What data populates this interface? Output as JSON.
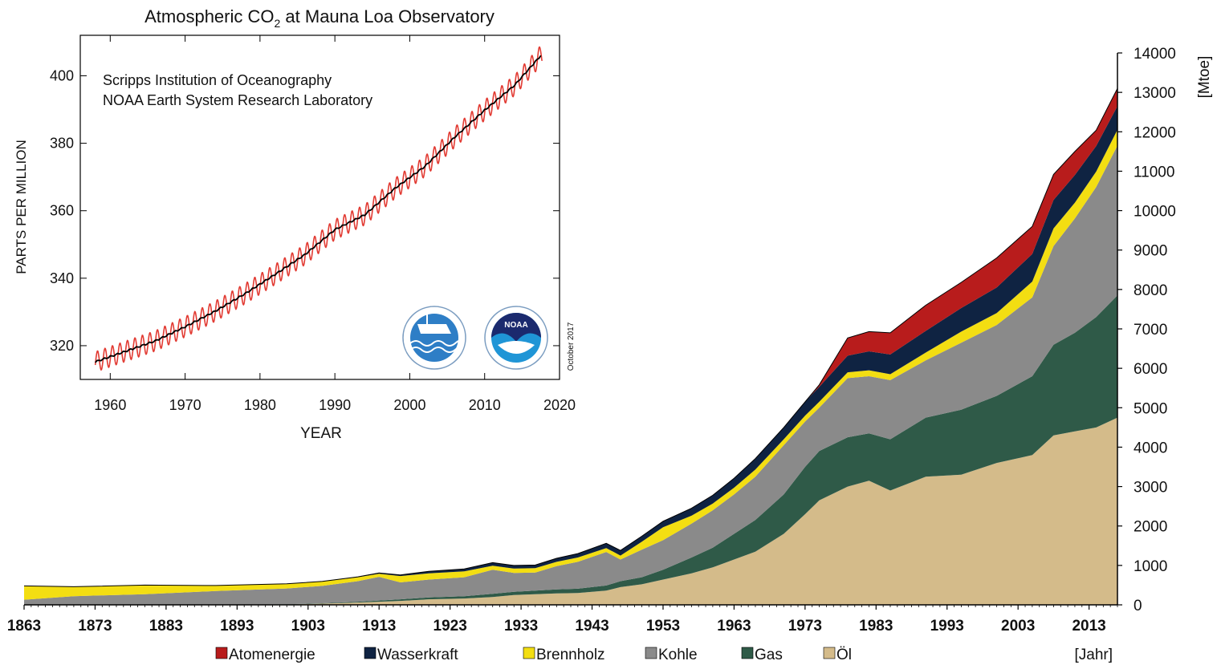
{
  "chart_data": [
    {
      "type": "area",
      "stacked": true,
      "xlabel": "[Jahr]",
      "ylabel": "[Mtoe]",
      "xlim": [
        1863,
        2017
      ],
      "ylim": [
        0,
        14000
      ],
      "x_ticks": [
        1863,
        1873,
        1883,
        1893,
        1903,
        1913,
        1923,
        1933,
        1943,
        1953,
        1963,
        1973,
        1983,
        1993,
        2003,
        2013
      ],
      "y_ticks": [
        0,
        1000,
        2000,
        3000,
        4000,
        5000,
        6000,
        7000,
        8000,
        9000,
        10000,
        11000,
        12000,
        13000,
        14000
      ],
      "y_axis_side": "right",
      "legend_position": "bottom",
      "x": [
        1863,
        1870,
        1880,
        1890,
        1900,
        1905,
        1910,
        1913,
        1916,
        1920,
        1925,
        1929,
        1932,
        1935,
        1938,
        1941,
        1945,
        1947,
        1950,
        1953,
        1957,
        1960,
        1963,
        1966,
        1970,
        1973,
        1975,
        1979,
        1982,
        1985,
        1990,
        1995,
        2000,
        2005,
        2008,
        2011,
        2014,
        2017
      ],
      "series": [
        {
          "name": "Öl",
          "color": "#d4bb8a",
          "values": [
            0,
            0,
            0,
            0,
            10,
            30,
            60,
            80,
            100,
            140,
            160,
            200,
            250,
            270,
            290,
            300,
            360,
            450,
            520,
            640,
            800,
            950,
            1150,
            1350,
            1800,
            2300,
            2650,
            3000,
            3150,
            2900,
            3250,
            3300,
            3600,
            3800,
            4300,
            4400,
            4500,
            4750
          ]
        },
        {
          "name": "Gas",
          "color": "#2f5a48",
          "values": [
            0,
            0,
            0,
            0,
            5,
            10,
            20,
            30,
            40,
            50,
            60,
            80,
            80,
            90,
            100,
            110,
            130,
            150,
            180,
            250,
            400,
            500,
            650,
            800,
            1000,
            1200,
            1250,
            1250,
            1200,
            1300,
            1500,
            1650,
            1700,
            2000,
            2300,
            2500,
            2800,
            3100
          ]
        },
        {
          "name": "Kohle",
          "color": "#8a8a8a",
          "values": [
            130,
            220,
            270,
            350,
            400,
            440,
            520,
            600,
            430,
            450,
            480,
            610,
            480,
            460,
            590,
            680,
            850,
            550,
            700,
            750,
            860,
            950,
            1000,
            1100,
            1250,
            1150,
            1100,
            1500,
            1450,
            1500,
            1450,
            1700,
            1800,
            2000,
            2500,
            2900,
            3300,
            3800
          ]
        },
        {
          "name": "Brennholz",
          "color": "#f3de12",
          "values": [
            350,
            240,
            230,
            140,
            120,
            110,
            100,
            80,
            160,
            160,
            150,
            100,
            110,
            110,
            110,
            110,
            100,
            100,
            200,
            330,
            200,
            170,
            170,
            180,
            150,
            150,
            150,
            150,
            150,
            150,
            200,
            280,
            300,
            400,
            450,
            400,
            390,
            400
          ]
        },
        {
          "name": "Wasserkraft",
          "color": "#0f2342",
          "values": [
            0,
            0,
            0,
            0,
            0,
            5,
            10,
            20,
            30,
            50,
            60,
            80,
            80,
            80,
            90,
            100,
            120,
            130,
            140,
            150,
            190,
            210,
            240,
            280,
            300,
            350,
            380,
            420,
            480,
            500,
            550,
            600,
            650,
            700,
            720,
            700,
            650,
            600
          ]
        },
        {
          "name": "Atomenergie",
          "color": "#b81c1c",
          "values": [
            0,
            0,
            0,
            0,
            0,
            0,
            0,
            0,
            0,
            0,
            0,
            0,
            0,
            0,
            0,
            0,
            0,
            0,
            0,
            0,
            0,
            0,
            0,
            0,
            0,
            0,
            50,
            450,
            500,
            550,
            650,
            650,
            750,
            700,
            650,
            600,
            400,
            450
          ]
        }
      ]
    },
    {
      "type": "line",
      "title": "Atmospheric CO",
      "title_sub": "2",
      "title_tail": " at Mauna Loa Observatory",
      "xlabel": "YEAR",
      "ylabel": "PARTS PER MILLION",
      "xlim": [
        1956,
        2020
      ],
      "ylim": [
        310,
        412
      ],
      "x_ticks": [
        1960,
        1970,
        1980,
        1990,
        2000,
        2010,
        2020
      ],
      "y_ticks": [
        320,
        340,
        360,
        380,
        400
      ],
      "annotations": [
        "Scripps Institution of Oceanography",
        "NOAA Earth System Research Laboratory"
      ],
      "side_note": "October 2017",
      "logo_text": "NOAA",
      "trend_x": [
        1958,
        1962,
        1966,
        1970,
        1974,
        1978,
        1982,
        1986,
        1990,
        1994,
        1998,
        2002,
        2006,
        2010,
        2014,
        2017.7
      ],
      "trend_y": [
        315.2,
        318.3,
        321.4,
        325.6,
        330.2,
        335.4,
        341.1,
        347.0,
        354.4,
        358.8,
        366.6,
        373.1,
        381.8,
        389.8,
        397.2,
        406.5
      ],
      "seasonal_amplitude": 3.0,
      "series_colors": {
        "monthly": "#e23b33",
        "trend": "#000000"
      }
    }
  ],
  "legend": [
    {
      "label": "Atomenergie",
      "color": "#b81c1c"
    },
    {
      "label": "Wasserkraft",
      "color": "#0f2342"
    },
    {
      "label": "Brennholz",
      "color": "#f3de12"
    },
    {
      "label": "Kohle",
      "color": "#8a8a8a"
    },
    {
      "label": "Gas",
      "color": "#2f5a48"
    },
    {
      "label": "Öl",
      "color": "#d4bb8a"
    }
  ]
}
